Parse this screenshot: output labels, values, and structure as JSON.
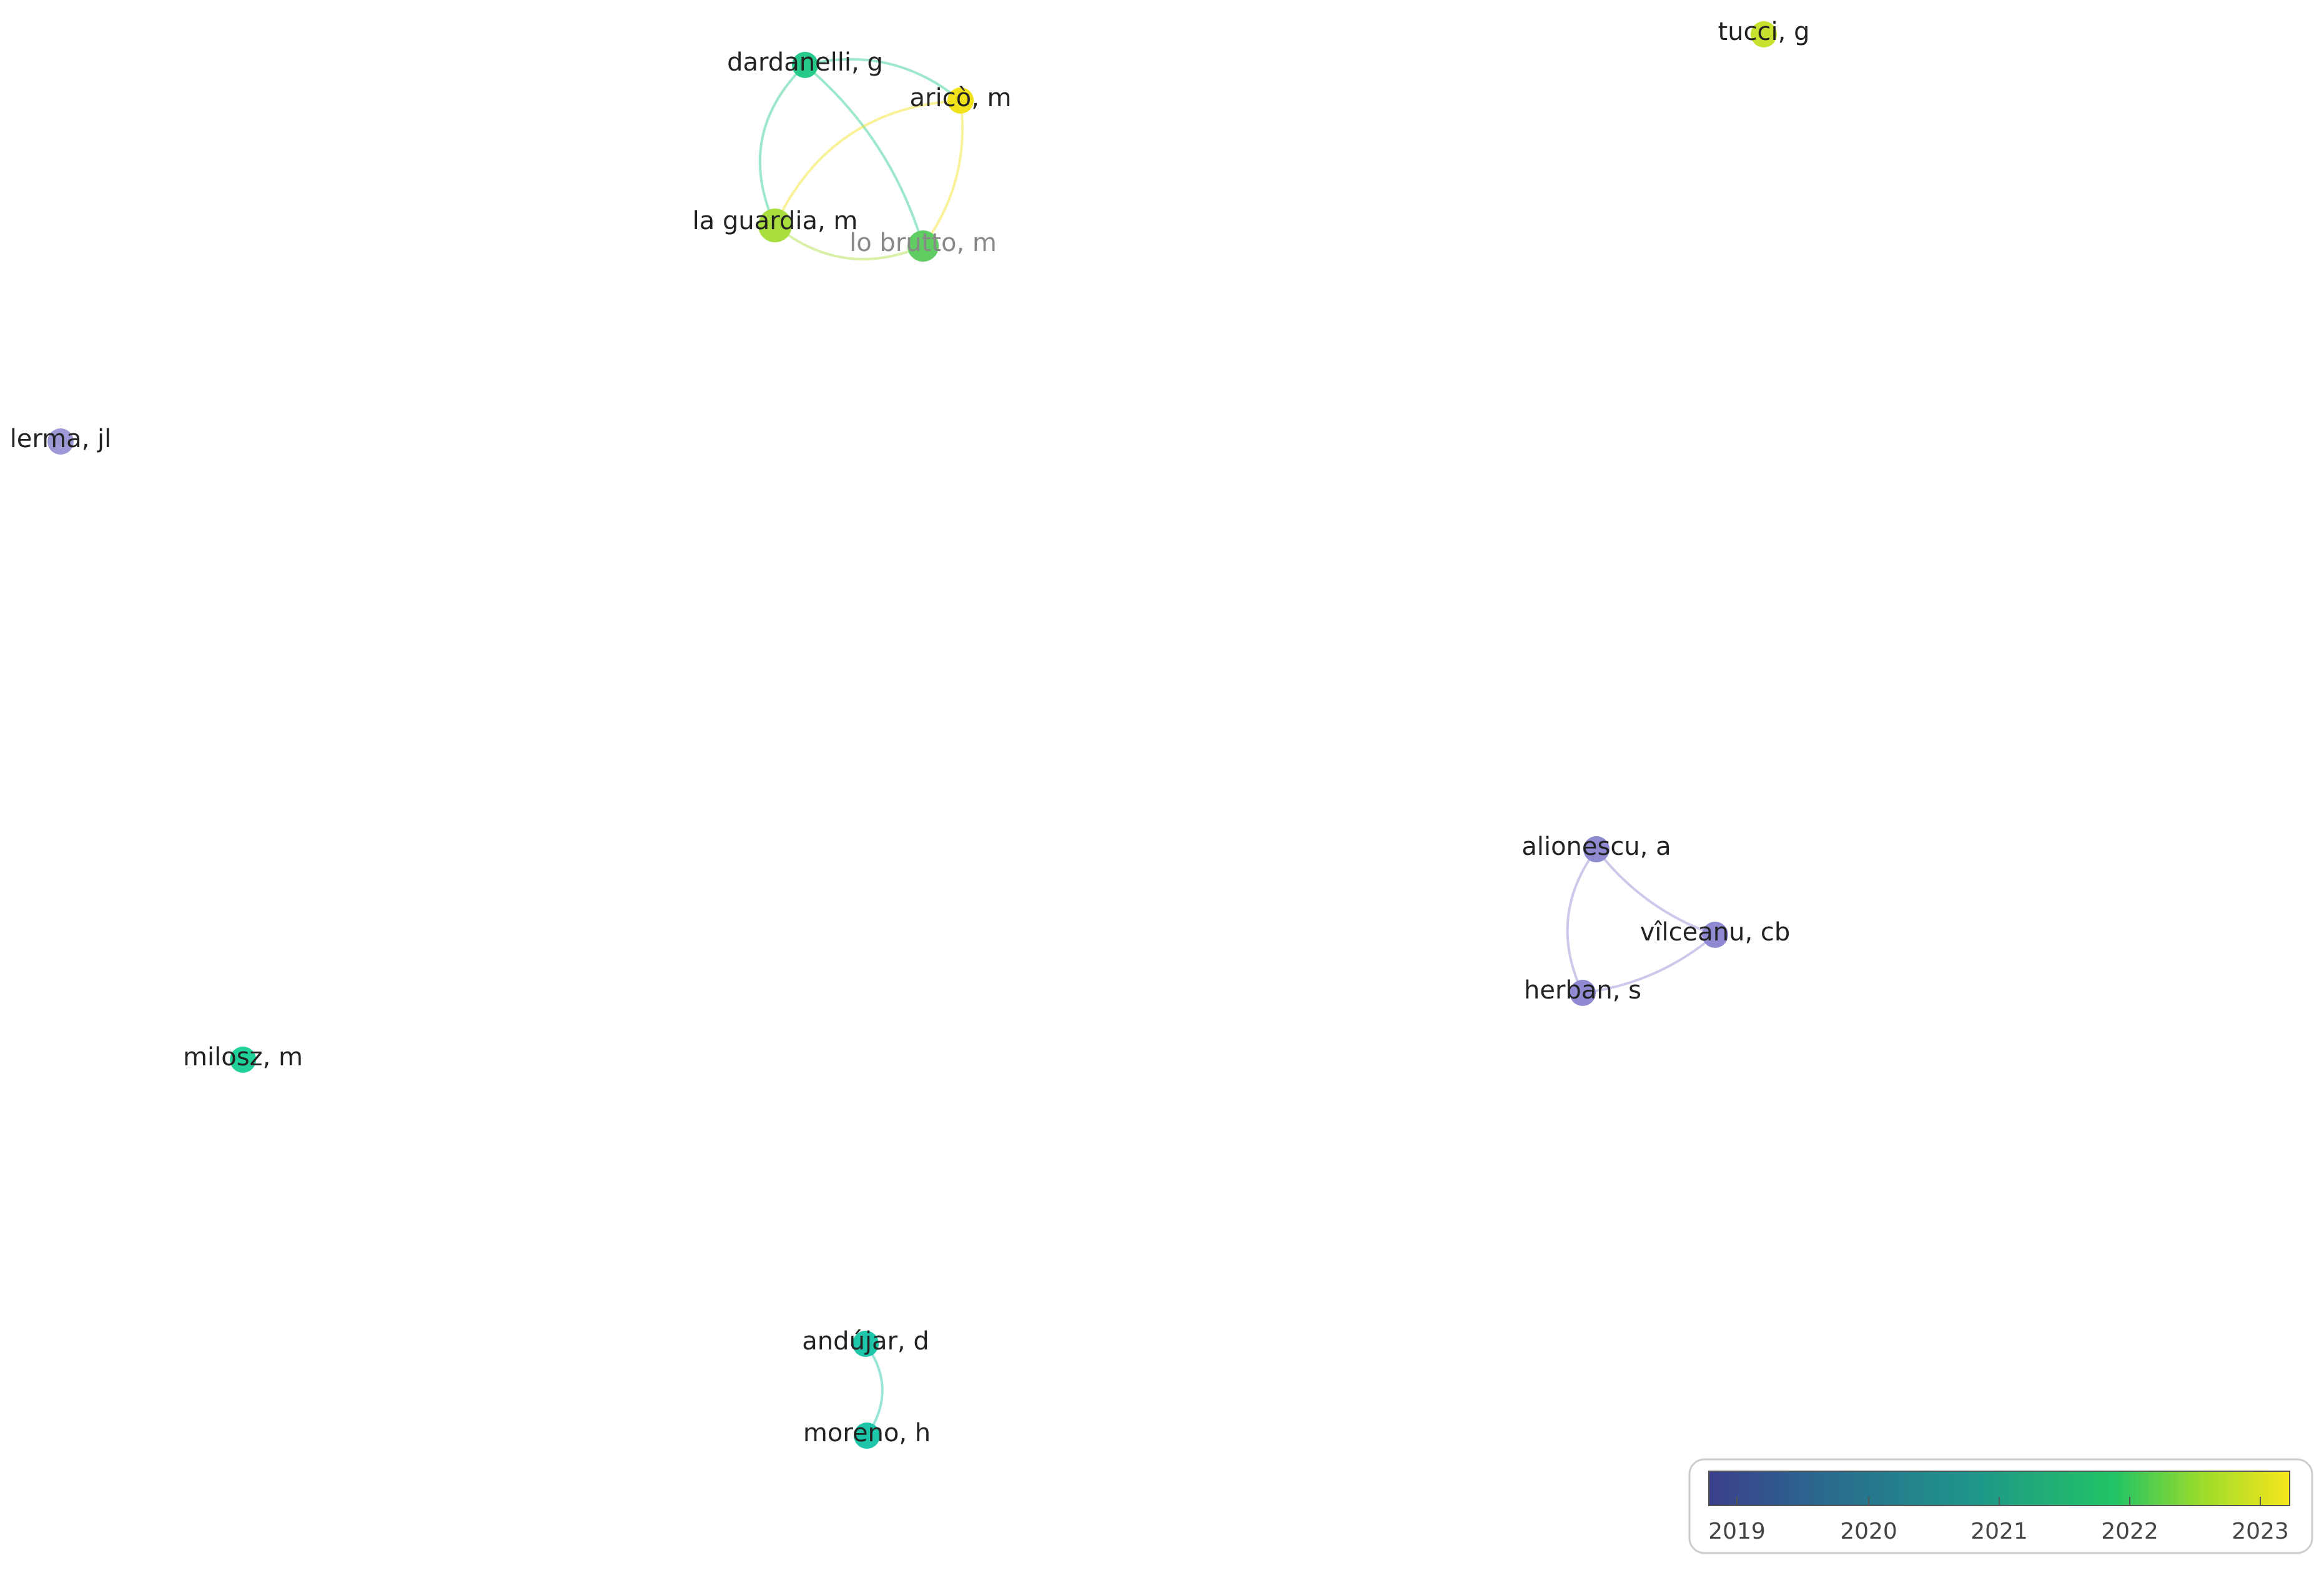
{
  "nodes": [
    {
      "label": "dardanelli, g",
      "color": "#26c98a"
    },
    {
      "label": "aricò, m",
      "color": "#f1e21c"
    },
    {
      "label": "la guardia, m",
      "color": "#a8de3e"
    },
    {
      "label": "lo brutto, m",
      "color": "#5fcd62"
    },
    {
      "label": "tucci, g",
      "color": "#c7e12e"
    },
    {
      "label": "lerma, jl",
      "color": "#9d98d6"
    },
    {
      "label": "alionescu, a",
      "color": "#8f8ad1"
    },
    {
      "label": "vîlceanu, cb",
      "color": "#8f8ad1"
    },
    {
      "label": "herban, s",
      "color": "#8f8ad1"
    },
    {
      "label": "milosz, m",
      "color": "#22d09a"
    },
    {
      "label": "andújar, d",
      "color": "#1dc6a8"
    },
    {
      "label": "moreno, h",
      "color": "#1dc6a8"
    }
  ],
  "colorbar": {
    "ticks": [
      2019,
      2020,
      2021,
      2022,
      2023
    ]
  }
}
